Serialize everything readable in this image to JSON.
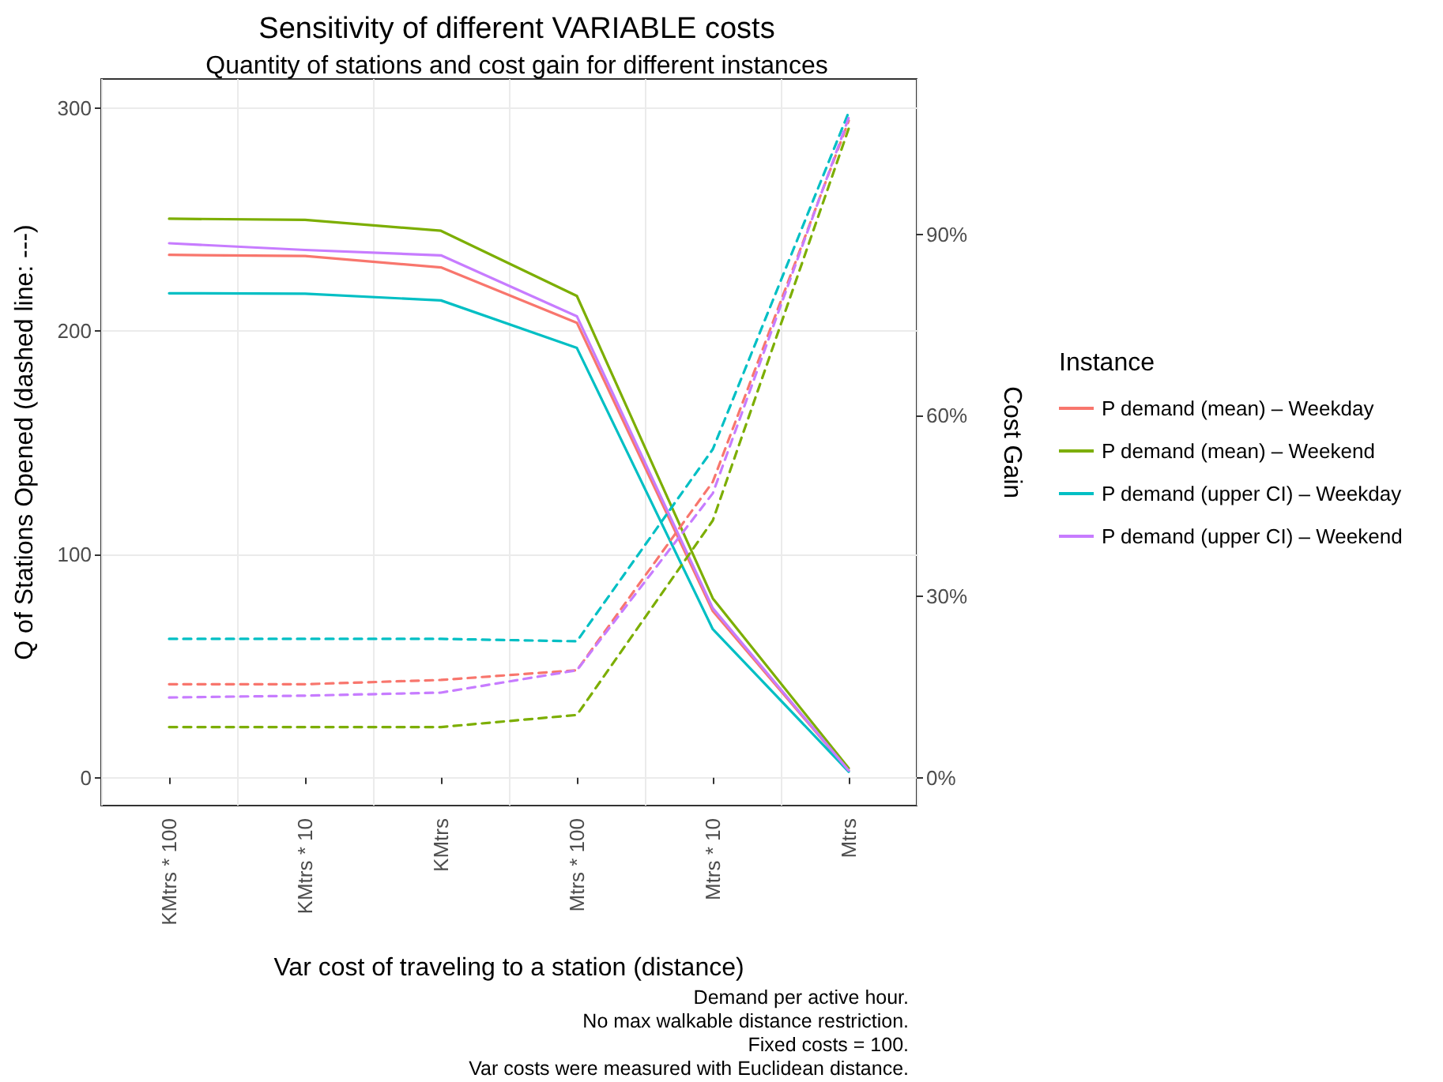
{
  "chart_data": {
    "type": "line",
    "title": "Sensitivity of different VARIABLE costs",
    "subtitle": "Quantity of stations and cost gain for different instances",
    "xlabel": "Var cost of traveling to a station (distance)",
    "ylabel": "Q of Stations Opened (dashed line: ---)",
    "y2label": "Cost Gain",
    "legend_title": "Instance",
    "categories": [
      "KMtrs * 100",
      "KMtrs * 10",
      "KMtrs",
      "Mtrs * 100",
      "Mtrs * 10",
      "Mtrs"
    ],
    "series": [
      {
        "name": "P demand (mean) – Weekday",
        "color": "#f8766d",
        "values": [
          234.2,
          233.7,
          228.6,
          203.8,
          74.6,
          3.2
        ]
      },
      {
        "name": "P demand (mean) – Weekend",
        "color": "#7cae00",
        "values": [
          250.4,
          249.9,
          245.0,
          215.8,
          80.3,
          4.2
        ]
      },
      {
        "name": "P demand (upper CI) – Weekday",
        "color": "#00bfc4",
        "values": [
          217.0,
          216.8,
          213.8,
          192.5,
          66.5,
          2.7
        ]
      },
      {
        "name": "P demand (upper CI) – Weekend",
        "color": "#c77cff",
        "values": [
          239.4,
          236.4,
          234.0,
          206.7,
          75.9,
          3.2
        ]
      },
      {
        "color": "#f8766d",
        "axis": "y2",
        "line_style": "dashed",
        "values": [
          15.5,
          15.5,
          16.2,
          17.8,
          49.0,
          108.8
        ]
      },
      {
        "color": "#7cae00",
        "axis": "y2",
        "line_style": "dashed",
        "values": [
          8.4,
          8.4,
          8.4,
          10.4,
          42.6,
          107.5
        ]
      },
      {
        "color": "#00bfc4",
        "axis": "y2",
        "line_style": "dashed",
        "values": [
          23.0,
          23.0,
          23.0,
          22.6,
          54.4,
          110.2
        ]
      },
      {
        "color": "#c77cff",
        "axis": "y2",
        "line_style": "dashed",
        "values": [
          13.3,
          13.6,
          14.1,
          17.8,
          47.1,
          109.3
        ]
      }
    ],
    "ylim": [
      -12.5,
      313
    ],
    "yticks": [
      0,
      100,
      200,
      300
    ],
    "y2lim": [
      -4.6,
      115.7
    ],
    "y2ticks": [
      {
        "value": 0,
        "label": "0%"
      },
      {
        "value": 30,
        "label": "30%"
      },
      {
        "value": 60,
        "label": "60%"
      },
      {
        "value": 90,
        "label": "90%"
      }
    ],
    "grid": true,
    "legend": "right",
    "marker": "none",
    "line_style": "solid",
    "annotations": [
      "Demand per active hour.",
      "No max walkable distance restriction.",
      "Fixed costs = 100.",
      "Var costs were measured with Euclidean distance."
    ]
  }
}
